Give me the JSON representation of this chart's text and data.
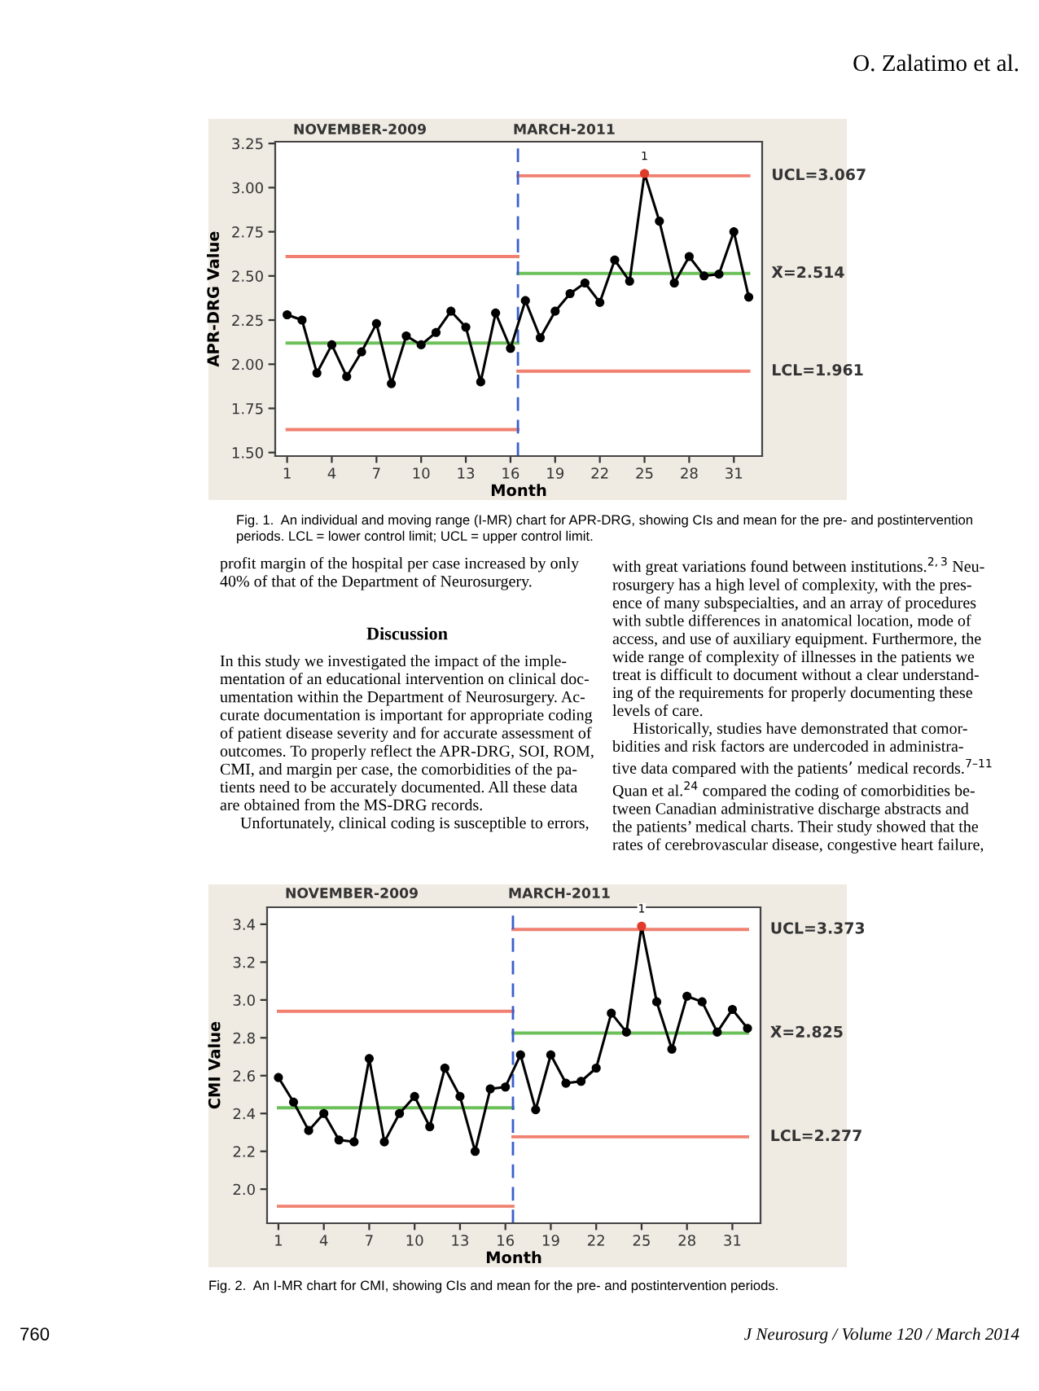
{
  "chart_data": [
    {
      "type": "line",
      "xlabel": "Month",
      "ylabel": "APR-DRG Value",
      "xlim": [
        0.2,
        32.9
      ],
      "ylim": [
        1.48,
        3.26
      ],
      "xticks": [
        1,
        4,
        7,
        10,
        13,
        16,
        19,
        22,
        25,
        28,
        31
      ],
      "yticks": [
        {
          "value": 1.5,
          "label": "1.50"
        },
        1.75,
        {
          "value": 2.0,
          "label": "2.00"
        },
        2.25,
        {
          "value": 2.5,
          "label": "2.50"
        },
        2.75,
        {
          "value": 3.0,
          "label": "3.00"
        },
        3.25
      ],
      "grid": false,
      "legend": false,
      "marker": "circle",
      "ref_lines": [
        {
          "axis": "x",
          "value": 16.5,
          "color": "#3a5fcd",
          "line_style": "dashed"
        }
      ],
      "series": [
        {
          "color": "#000000",
          "x": [
            1,
            2,
            3,
            4,
            5,
            6,
            7,
            8,
            9,
            10,
            11,
            12,
            13,
            14,
            15,
            16,
            17,
            18,
            19,
            20,
            21,
            22,
            23,
            24,
            25,
            26,
            27,
            28,
            29,
            30,
            31,
            32
          ],
          "values": [
            2.28,
            2.25,
            1.95,
            2.11,
            1.93,
            2.07,
            2.23,
            1.89,
            2.16,
            2.11,
            2.18,
            2.3,
            2.21,
            1.9,
            2.29,
            2.09,
            2.36,
            2.15,
            2.3,
            2.4,
            2.46,
            2.35,
            2.59,
            2.47,
            3.08,
            2.81,
            2.46,
            2.61,
            2.5,
            2.51,
            2.75,
            2.38
          ],
          "colors": [
            "#000000",
            "#000000",
            "#000000",
            "#000000",
            "#000000",
            "#000000",
            "#000000",
            "#000000",
            "#000000",
            "#000000",
            "#000000",
            "#000000",
            "#000000",
            "#000000",
            "#000000",
            "#000000",
            "#000000",
            "#000000",
            "#000000",
            "#000000",
            "#000000",
            "#000000",
            "#000000",
            "#000000",
            "#e03a2a",
            "#000000",
            "#000000",
            "#000000",
            "#000000",
            "#000000",
            "#000000",
            "#000000"
          ]
        },
        {
          "type": "line",
          "marker": "none",
          "color": "#f08070",
          "x": [
            1,
            16.5
          ],
          "values": [
            2.61,
            2.61
          ]
        },
        {
          "type": "line",
          "marker": "none",
          "color": "#6cc05a",
          "x": [
            1,
            16.5
          ],
          "values": [
            2.12,
            2.12
          ]
        },
        {
          "type": "line",
          "marker": "none",
          "color": "#f08070",
          "x": [
            1,
            16.5
          ],
          "values": [
            1.63,
            1.63
          ]
        },
        {
          "type": "line",
          "marker": "none",
          "name": "UCL=3.067",
          "color": "#f08070",
          "x": [
            16.5,
            32
          ],
          "values": [
            3.067,
            3.067
          ]
        },
        {
          "type": "line",
          "marker": "none",
          "name": "X̄=2.514",
          "color": "#6cc05a",
          "x": [
            16.5,
            32
          ],
          "values": [
            2.514,
            2.514
          ]
        },
        {
          "type": "line",
          "marker": "none",
          "name": "LCL=1.961",
          "color": "#f08070",
          "x": [
            16.5,
            32
          ],
          "values": [
            1.961,
            1.961
          ]
        }
      ],
      "annotations": [
        "O. Zalatimo et al.",
        "NOVEMBER-2009",
        "MARCH-2011",
        {
          "text": "1",
          "x": 25,
          "y": 3.08
        },
        "Fig. 1.  An individual and moving range (I-MR) chart for APR-DRG, showing CIs and mean for the pre- and postintervention\nperiods. LCL = lower control limit; UCL = upper control limit.",
        "profit margin of the hospital per case increased by only\n40% of that of the Department of Neurosurgery.",
        "Discussion",
        "In this study we investigated the impact of the imple-\nmentation of an educational intervention on clinical doc-\numentation within the Department of Neurosurgery. Ac-\ncurate documentation is important for appropriate coding\nof patient disease severity and for accurate assessment of\noutcomes. To properly reflect the APR-DRG, SOI, ROM,\nCMI, and margin per case, the comorbidities of the pa-\ntients need to be accurately documented. All these data\nare obtained from the MS-DRG records.\n     Unfortunately, clinical coding is susceptible to errors,",
        "with great variations found between institutions.$^{2,3}$ Neu-\nrosurgery has a high level of complexity, with the pres-\nence of many subspecialties, and an array of procedures\nwith subtle differences in anatomical location, mode of\naccess, and use of auxiliary equipment. Furthermore, the\nwide range of complexity of illnesses in the patients we\ntreat is difficult to document without a clear understand-\ning of the requirements for properly documenting these\nlevels of care.\n     Historically, studies have demonstrated that comor-\nbidities and risk factors are undercoded in administra-\ntive data compared with the patients’ medical records.$^{7–11}$\nQuan et al.$^{24}$ compared the coding of comorbidities be-\ntween Canadian administrative discharge abstracts and\nthe patients’ medical charts. Their study showed that the\nrates of cerebrovascular disease, congestive heart failure,"
      ]
    },
    {
      "type": "line",
      "xlabel": "Month",
      "ylabel": "CMI Value",
      "xlim": [
        0.25,
        32.86
      ],
      "ylim": [
        1.82,
        3.49
      ],
      "xticks": [
        1,
        4,
        7,
        10,
        13,
        16,
        19,
        22,
        25,
        28,
        31
      ],
      "yticks": [
        {
          "value": 2.0,
          "label": "2.0"
        },
        2.2,
        2.4,
        2.6,
        2.8,
        {
          "value": 3.0,
          "label": "3.0"
        },
        3.2,
        3.4
      ],
      "grid": false,
      "legend": false,
      "marker": "circle",
      "ref_lines": [
        {
          "axis": "x",
          "value": 16.5,
          "color": "#3a5fcd",
          "line_style": "dashed"
        }
      ],
      "series": [
        {
          "color": "#000000",
          "x": [
            1,
            2,
            3,
            4,
            5,
            6,
            7,
            8,
            9,
            10,
            11,
            12,
            13,
            14,
            15,
            16,
            17,
            18,
            19,
            20,
            21,
            22,
            23,
            24,
            25,
            26,
            27,
            28,
            29,
            30,
            31,
            32
          ],
          "values": [
            2.59,
            2.46,
            2.31,
            2.4,
            2.26,
            2.25,
            2.69,
            2.25,
            2.4,
            2.49,
            2.33,
            2.64,
            2.49,
            2.2,
            2.53,
            2.54,
            2.71,
            2.42,
            2.71,
            2.56,
            2.57,
            2.64,
            2.93,
            2.83,
            3.39,
            2.99,
            2.74,
            3.02,
            2.99,
            2.83,
            2.95,
            2.85
          ],
          "colors": [
            "#000000",
            "#000000",
            "#000000",
            "#000000",
            "#000000",
            "#000000",
            "#000000",
            "#000000",
            "#000000",
            "#000000",
            "#000000",
            "#000000",
            "#000000",
            "#000000",
            "#000000",
            "#000000",
            "#000000",
            "#000000",
            "#000000",
            "#000000",
            "#000000",
            "#000000",
            "#000000",
            "#000000",
            "#e03a2a",
            "#000000",
            "#000000",
            "#000000",
            "#000000",
            "#000000",
            "#000000",
            "#000000"
          ]
        },
        {
          "type": "line",
          "marker": "none",
          "color": "#f08070",
          "x": [
            1,
            16.5
          ],
          "values": [
            2.94,
            2.94
          ]
        },
        {
          "type": "line",
          "marker": "none",
          "color": "#6cc05a",
          "x": [
            1,
            16.5
          ],
          "values": [
            2.43,
            2.43
          ]
        },
        {
          "type": "line",
          "marker": "none",
          "color": "#f08070",
          "x": [
            1,
            16.5
          ],
          "values": [
            1.91,
            1.91
          ]
        },
        {
          "type": "line",
          "marker": "none",
          "name": "UCL=3.373",
          "color": "#f08070",
          "x": [
            16.5,
            32
          ],
          "values": [
            3.373,
            3.373
          ]
        },
        {
          "type": "line",
          "marker": "none",
          "name": "X̄=2.825",
          "color": "#6cc05a",
          "x": [
            16.5,
            32
          ],
          "values": [
            2.825,
            2.825
          ]
        },
        {
          "type": "line",
          "marker": "none",
          "name": "LCL=2.277",
          "color": "#f08070",
          "x": [
            16.5,
            32
          ],
          "values": [
            2.277,
            2.277
          ]
        }
      ],
      "annotations": [
        "NOVEMBER-2009",
        "MARCH-2011",
        {
          "text": "1",
          "x": 25,
          "y": 3.39
        },
        "Fig. 2.  An I-MR chart for CMI, showing CIs and mean for the pre- and postintervention periods.",
        "760",
        "J Neurosurg / Volume 120 / March 2014"
      ]
    }
  ]
}
